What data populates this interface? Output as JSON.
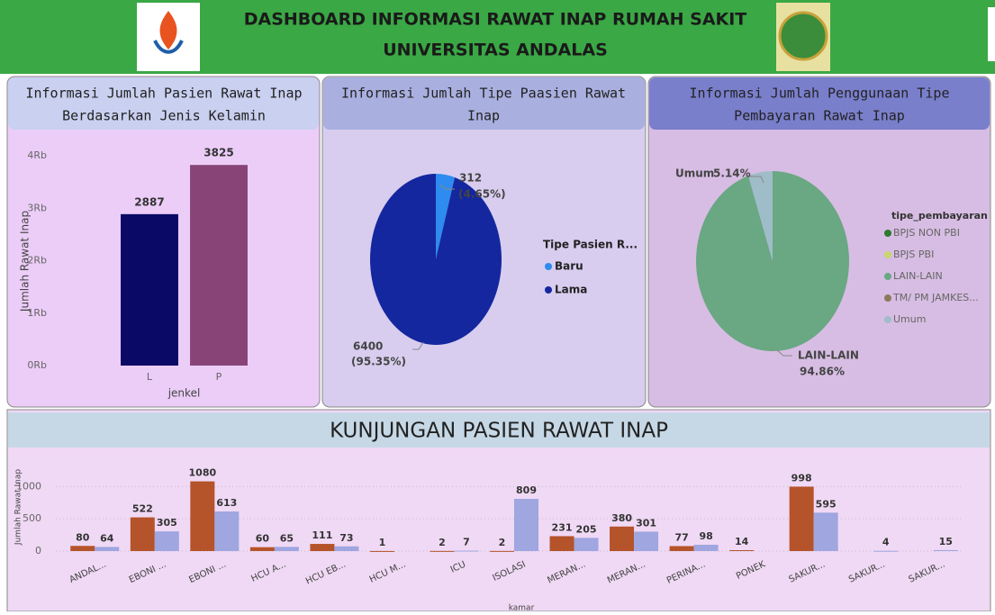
{
  "header": {
    "title": [
      "DASHBOARD INFORMASI RAWAT INAP RUMAH SAKIT",
      "UNIVERSITAS ANDALAS"
    ]
  },
  "chart_data": [
    {
      "type": "bar",
      "title": [
        "Informasi Jumlah Pasien Rawat Inap",
        "Berdasarkan Jenis Kelamin"
      ],
      "categories": [
        "L",
        "P"
      ],
      "values": [
        2887,
        3825
      ],
      "colors": [
        "#0a0a66",
        "#884477"
      ],
      "ylim": [
        0,
        4000
      ],
      "yticks": [
        {
          "value": 0,
          "label": "0Rb"
        },
        {
          "value": 1000,
          "label": "1Rb"
        },
        {
          "value": 2000,
          "label": "2Rb"
        },
        {
          "value": 3000,
          "label": "3Rb"
        },
        {
          "value": 4000,
          "label": "4Rb"
        }
      ],
      "ylabel": "Jumlah Rawat Inap",
      "xlabel": "jenkel"
    },
    {
      "type": "pie",
      "title": [
        "Informasi Jumlah Tipe Paasien Rawat",
        "Inap"
      ],
      "categories": [
        "Baru",
        "Lama"
      ],
      "values": [
        312,
        6400
      ],
      "colors": [
        "#2e8bef",
        "#14279e"
      ],
      "percents": [
        4.65,
        95.35
      ],
      "percent_labels": [
        "(4.65%)",
        "(95.35%)"
      ],
      "legend_title": "Tipe Pasien R..."
    },
    {
      "type": "pie",
      "title": [
        "Informasi Jumlah Penggunaan Tipe",
        "Pembayaran Rawat Inap"
      ],
      "categories": [
        "BPJS NON PBI",
        "BPJS PBI",
        "LAIN-LAIN",
        "TM/ PM JAMKES...",
        "Umum"
      ],
      "values": [
        0,
        0,
        94.86,
        0,
        5.14
      ],
      "value_labels": [
        null,
        null,
        "94.86%",
        null,
        "5.14%"
      ],
      "colors": [
        "#2d7a2d",
        "#c9d66b",
        "#6aa783",
        "#8a7a5a",
        "#9fbdc8"
      ],
      "legend_title": "tipe_pembayaran"
    },
    {
      "type": "bar",
      "title": [
        "KUNJUNGAN PASIEN RAWAT INAP"
      ],
      "categories": [
        "ANDAL...",
        "EBONI ...",
        "EBONI ...",
        "HCU A...",
        "HCU EB...",
        "HCU M...",
        "ICU",
        "ISOLASI",
        "MERAN...",
        "MERAN...",
        "PERINA...",
        "PONEK",
        "SAKUR...",
        "SAKUR...",
        "SAKUR..."
      ],
      "series": [
        {
          "color": "#b5532a",
          "values": [
            80,
            522,
            1080,
            60,
            111,
            1,
            2,
            2,
            231,
            380,
            77,
            14,
            998,
            null,
            null
          ]
        },
        {
          "color": "#9fa6e0",
          "values": [
            64,
            305,
            613,
            65,
            73,
            null,
            7,
            809,
            205,
            301,
            98,
            null,
            595,
            4,
            15
          ]
        }
      ],
      "ylim": [
        0,
        1200
      ],
      "yticks": [
        0,
        500,
        1000
      ],
      "grid": true,
      "ylabel": "Jumlah Rawat Inap",
      "xlabel": "kamar"
    }
  ]
}
